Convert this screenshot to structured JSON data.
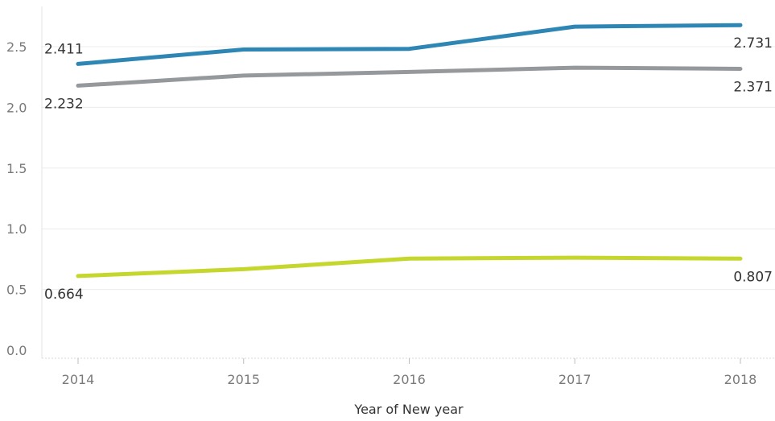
{
  "chart_data": {
    "type": "line",
    "xlabel": "Year of New year",
    "ylabel": "",
    "x": [
      "2014",
      "2015",
      "2016",
      "2017",
      "2018"
    ],
    "ylim": [
      0,
      2.8
    ],
    "yticks": [
      "0.0",
      "0.5",
      "1.0",
      "1.5",
      "2.0",
      "2.5"
    ],
    "grid": true,
    "series": [
      {
        "color": "#2e86b5",
        "values": [
          2.411,
          2.53,
          2.535,
          2.718,
          2.731
        ],
        "labels": {
          "start": "2.411",
          "end": "2.731"
        }
      },
      {
        "color": "#96999c",
        "values": [
          2.232,
          2.315,
          2.345,
          2.38,
          2.371
        ],
        "labels": {
          "start": "2.232",
          "end": "2.371"
        }
      },
      {
        "color": "#c5d62c",
        "values": [
          0.664,
          0.72,
          0.807,
          0.815,
          0.807
        ],
        "labels": {
          "start": "0.664",
          "end": "0.807"
        }
      }
    ]
  }
}
